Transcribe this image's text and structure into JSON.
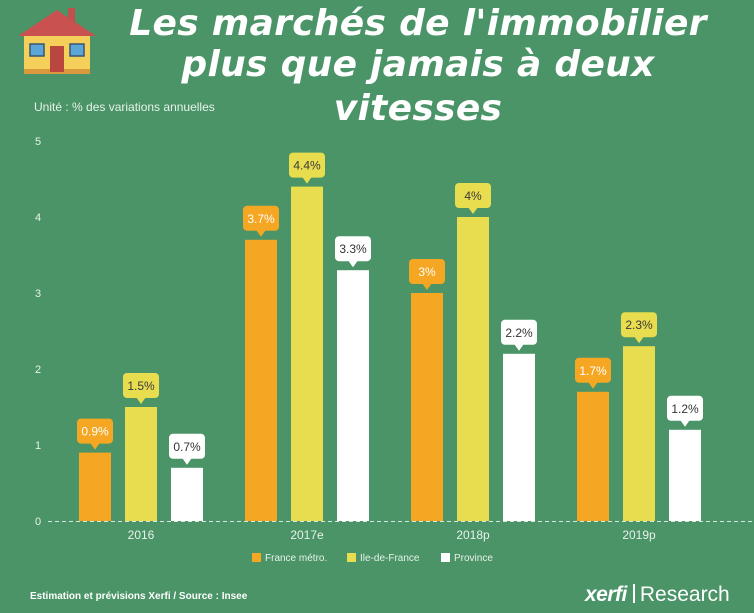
{
  "title": {
    "line1": "Les marchés de l'immobilier",
    "line2": "plus que jamais à deux vitesses"
  },
  "unit_label": "Unité : % des variations annuelles",
  "footer": {
    "note": "Estimation et prévisions Xerfi / Source : Insee",
    "brand_bold": "xerfi",
    "brand_rest": "Research"
  },
  "icons": {
    "logo": "house-icon"
  },
  "colors": {
    "background": "#4a9467",
    "france": "#f5a623",
    "idf": "#e8dd4e",
    "province": "#ffffff"
  },
  "chart_data": {
    "type": "bar",
    "categories": [
      "2016",
      "2017e",
      "2018p",
      "2019p"
    ],
    "series": [
      {
        "name": "France métro.",
        "values": [
          0.9,
          3.7,
          3.0,
          1.7
        ],
        "labels": [
          "0.9%",
          "3.7%",
          "3%",
          "1.7%"
        ],
        "color": "#f5a623"
      },
      {
        "name": "Ile-de-France",
        "values": [
          1.5,
          4.4,
          4.0,
          2.3
        ],
        "labels": [
          "1.5%",
          "4.4%",
          "4%",
          "2.3%"
        ],
        "color": "#e8dd4e"
      },
      {
        "name": "Province",
        "values": [
          0.7,
          3.3,
          2.2,
          1.2
        ],
        "labels": [
          "0.7%",
          "3.3%",
          "2.2%",
          "1.2%"
        ],
        "color": "#ffffff"
      }
    ],
    "yticks": [
      "0",
      "1",
      "2",
      "3",
      "4",
      "5"
    ],
    "ylim": [
      0,
      5
    ],
    "legend_position": "bottom-center",
    "grid": false
  }
}
